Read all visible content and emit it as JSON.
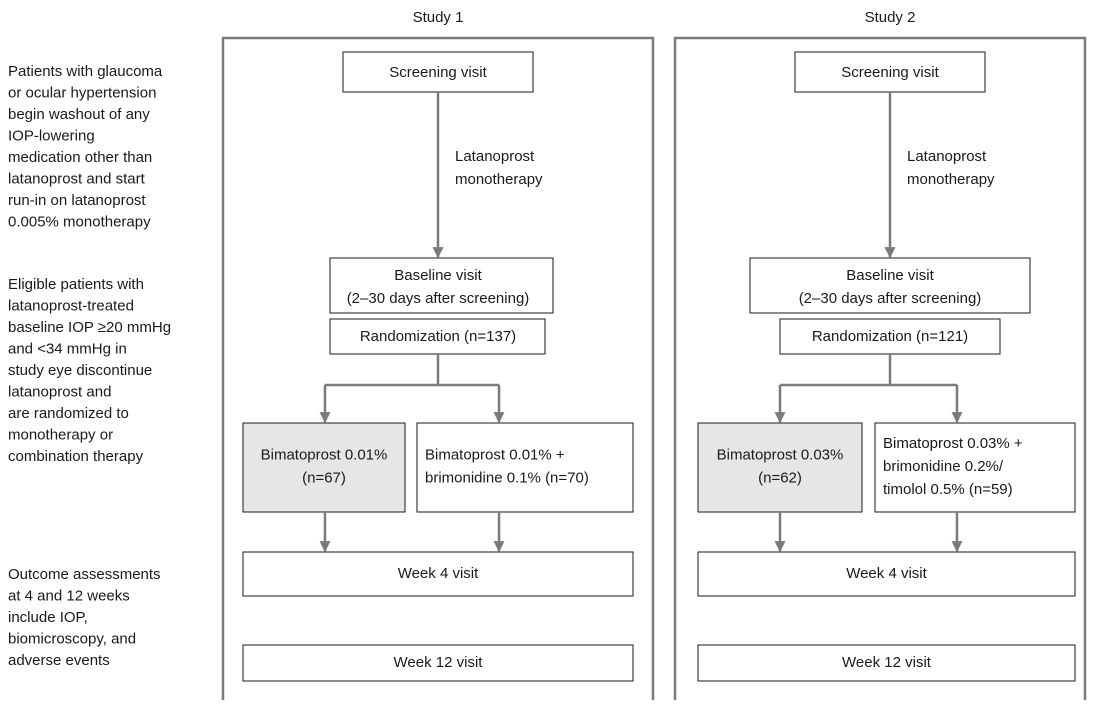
{
  "notes": [
    {
      "lines": [
        "Patients with glaucoma",
        "or ocular hypertension",
        "begin washout of any",
        "IOP-lowering",
        "medication other than",
        "latanoprost and start",
        "run-in on latanoprost",
        "0.005% monotherapy"
      ]
    },
    {
      "lines": [
        "Eligible patients with",
        "latanoprost-treated",
        "baseline IOP ≥20 mmHg",
        "and <34 mmHg in",
        "study eye discontinue",
        "latanoprost and",
        "are randomized to",
        "monotherapy or",
        "combination therapy"
      ]
    },
    {
      "lines": [
        "Outcome assessments",
        "at 4 and 12 weeks",
        "include IOP,",
        "biomicroscopy, and",
        "adverse events"
      ]
    }
  ],
  "studies": [
    {
      "title": "Study 1",
      "screening": "Screening visit",
      "run_in": [
        "Latanoprost",
        "monotherapy"
      ],
      "baseline": [
        "Baseline visit",
        "(2–30 days after screening)"
      ],
      "randomization": "Randomization (n=137)",
      "arms": [
        {
          "lines": [
            "Bimatoprost 0.01%",
            "(n=67)"
          ]
        },
        {
          "lines": [
            "Bimatoprost 0.01% +",
            "brimonidine 0.1% (n=70)"
          ]
        }
      ],
      "week4": "Week 4 visit",
      "week12": "Week 12 visit"
    },
    {
      "title": "Study 2",
      "screening": "Screening visit",
      "run_in": [
        "Latanoprost",
        "monotherapy"
      ],
      "baseline": [
        "Baseline visit",
        "(2–30 days after screening)"
      ],
      "randomization": "Randomization (n=121)",
      "arms": [
        {
          "lines": [
            "Bimatoprost 0.03%",
            "(n=62)"
          ]
        },
        {
          "lines": [
            "Bimatoprost 0.03% +",
            "brimonidine 0.2%/",
            "timolol 0.5% (n=59)"
          ]
        }
      ],
      "week4": "Week 4 visit",
      "week12": "Week 12 visit"
    }
  ]
}
